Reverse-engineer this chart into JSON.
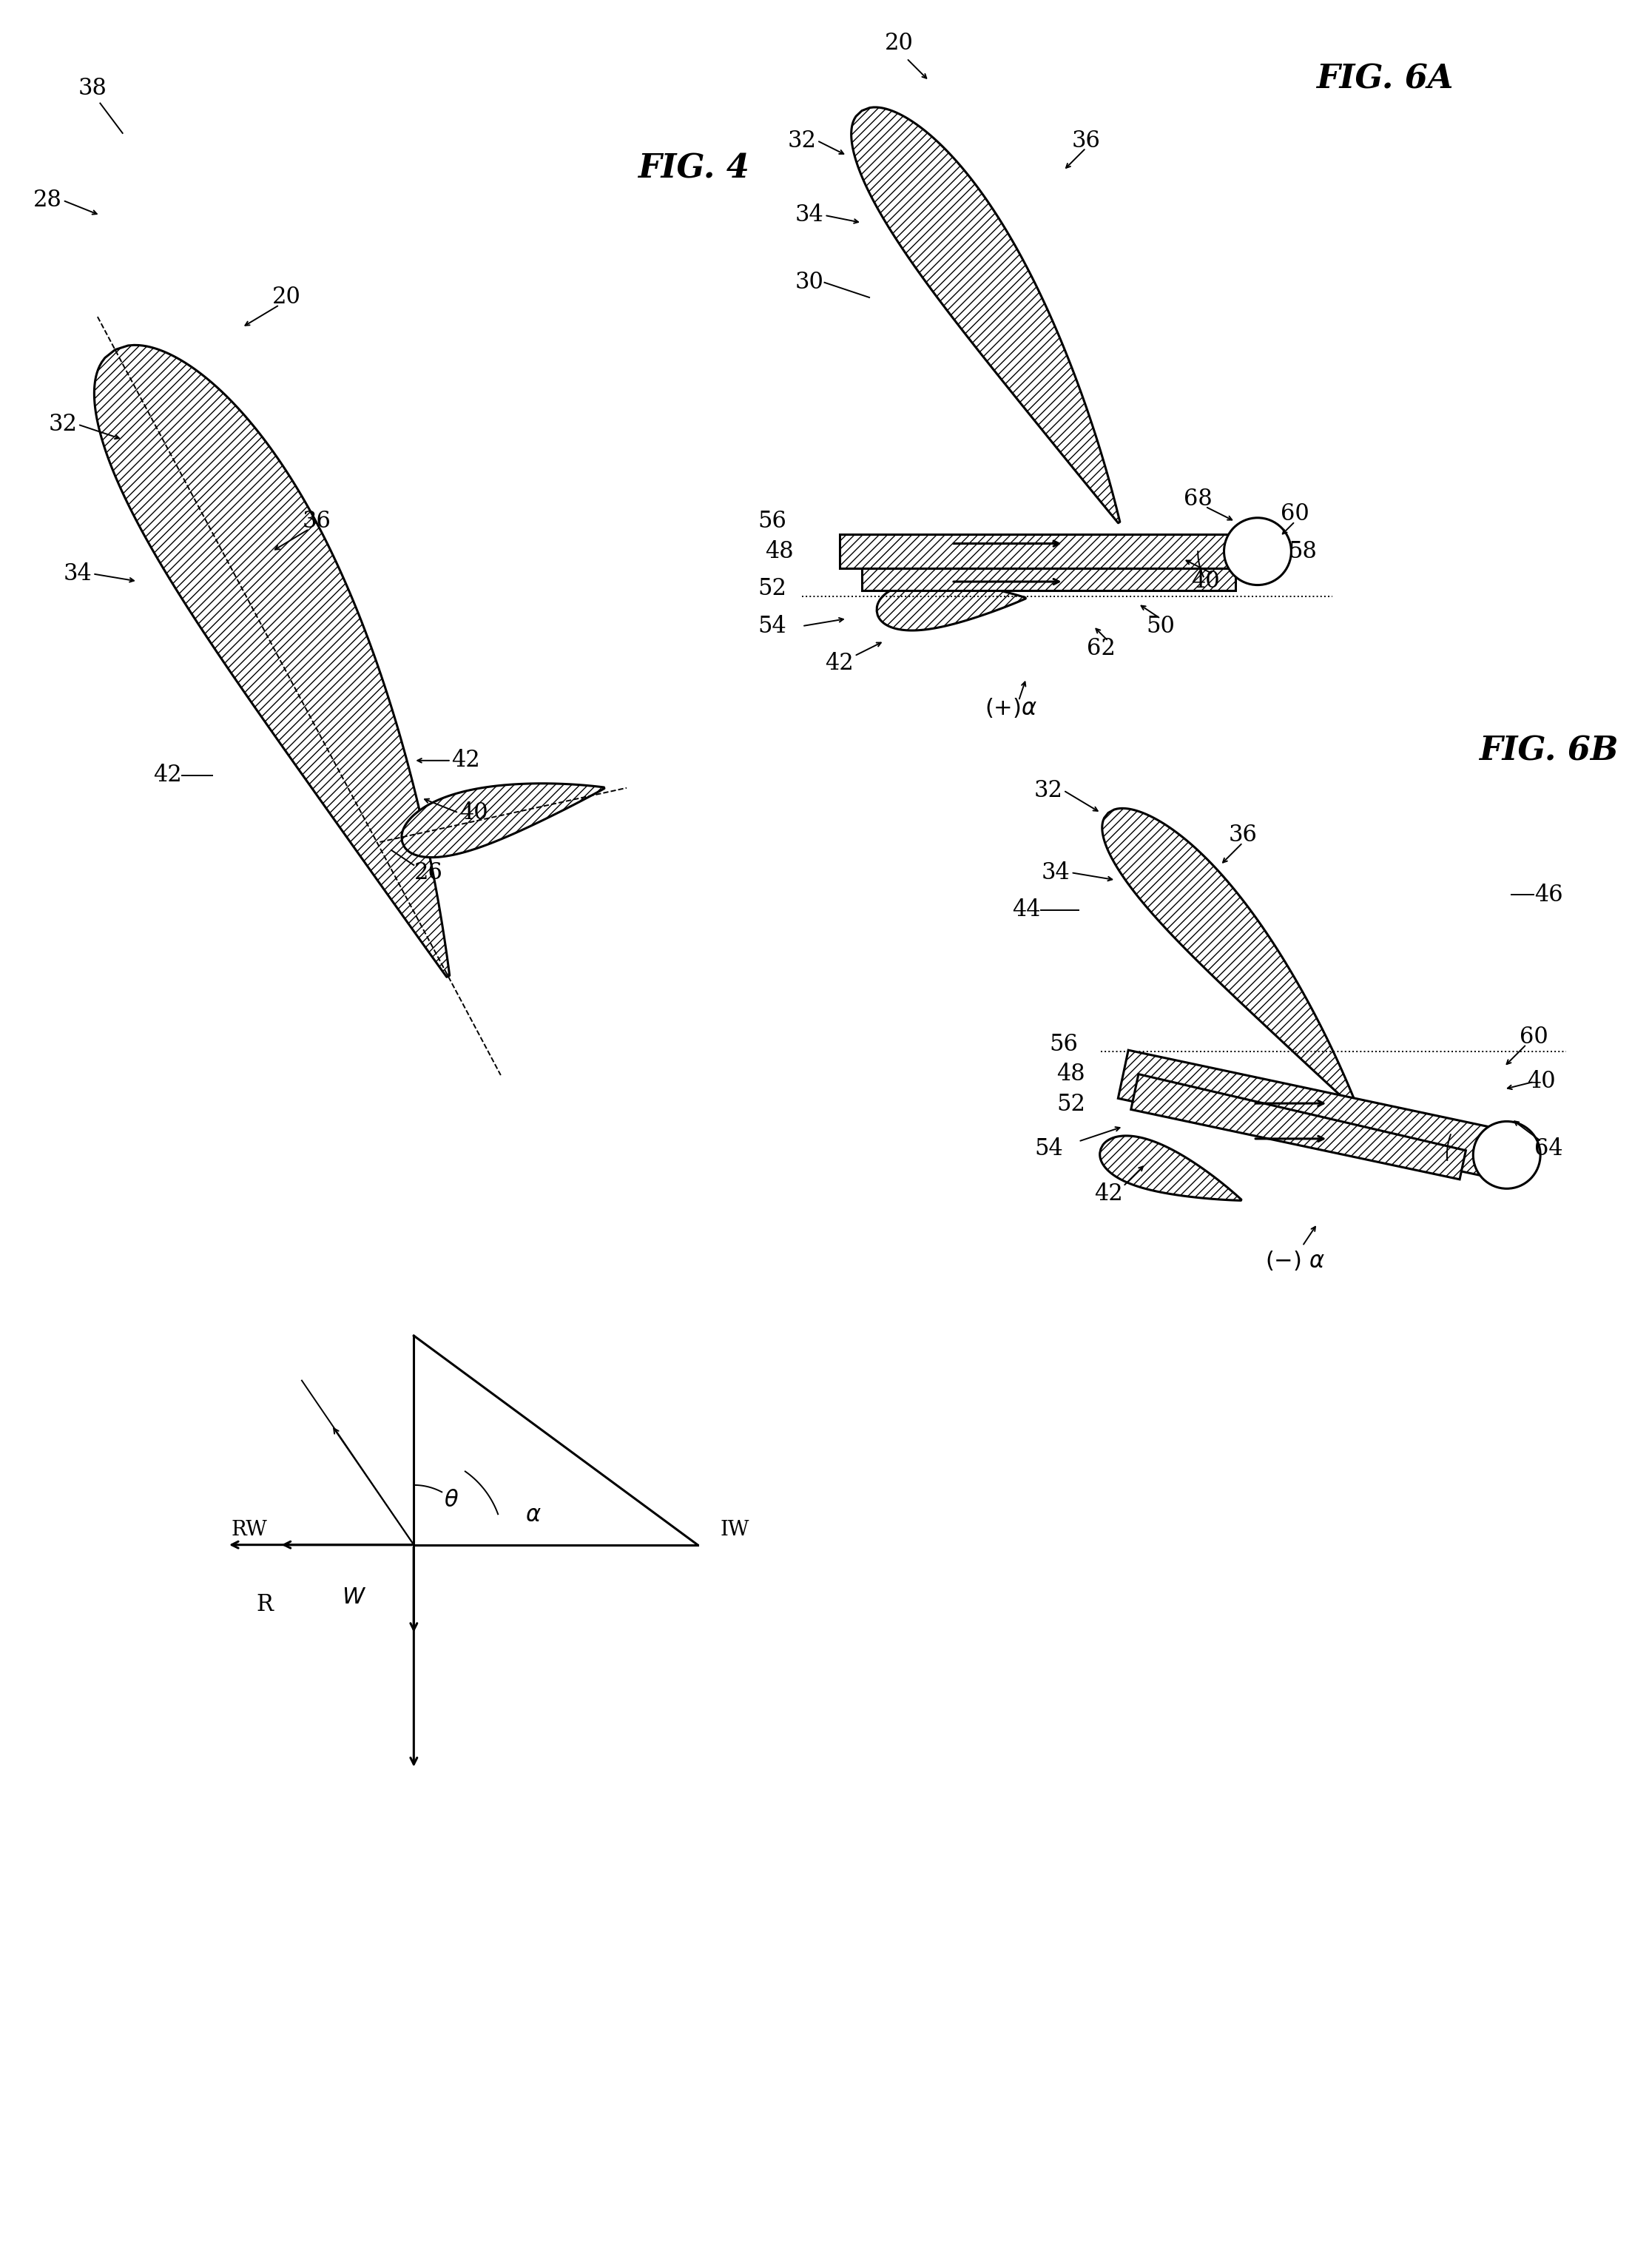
{
  "bg_color": "#ffffff",
  "line_color": "#000000",
  "fig_width": 22.29,
  "fig_height": 30.65,
  "labels": {
    "fig4": "FIG. 4",
    "fig6a": "FIG. 6A",
    "fig6b": "FIG. 6B"
  },
  "font_size_fig": 32,
  "font_size_ref": 22,
  "lw_main": 2.2,
  "lw_thin": 1.4,
  "lw_hatch": 0.6
}
